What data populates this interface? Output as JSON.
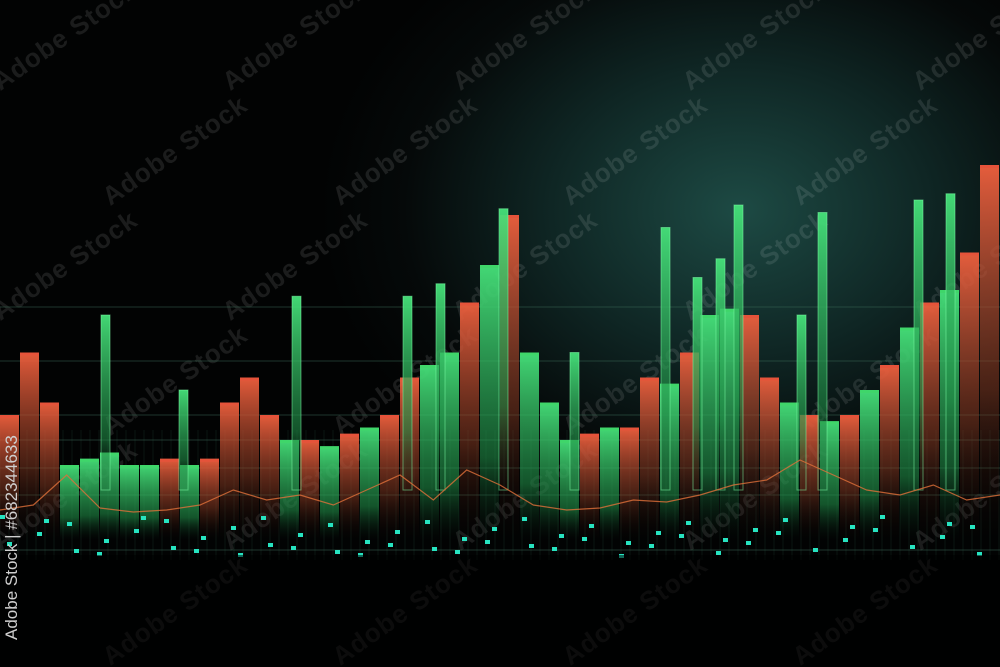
{
  "watermark": "Adobe Stock",
  "stock_id_label": "Adobe Stock | #682344633",
  "colors": {
    "up": "#3fd66a",
    "down": "#e5533a",
    "line": "#e0703a",
    "dots": "#27e3c0",
    "grid": "#3a6a55"
  },
  "chart_data": {
    "type": "bar",
    "title": "",
    "xlabel": "",
    "ylabel": "",
    "ylim": [
      0,
      300
    ],
    "grid": true,
    "bars": [
      {
        "v": 60,
        "c": "down"
      },
      {
        "v": 110,
        "c": "down"
      },
      {
        "v": 70,
        "c": "down"
      },
      {
        "v": 20,
        "c": "up"
      },
      {
        "v": 25,
        "c": "up"
      },
      {
        "v": 30,
        "c": "up"
      },
      {
        "v": 20,
        "c": "up"
      },
      {
        "v": 20,
        "c": "up"
      },
      {
        "v": 25,
        "c": "down"
      },
      {
        "v": 20,
        "c": "up"
      },
      {
        "v": 25,
        "c": "down"
      },
      {
        "v": 70,
        "c": "down"
      },
      {
        "v": 90,
        "c": "down"
      },
      {
        "v": 60,
        "c": "down"
      },
      {
        "v": 40,
        "c": "up"
      },
      {
        "v": 40,
        "c": "down"
      },
      {
        "v": 35,
        "c": "up"
      },
      {
        "v": 45,
        "c": "down"
      },
      {
        "v": 50,
        "c": "up"
      },
      {
        "v": 60,
        "c": "down"
      },
      {
        "v": 90,
        "c": "down"
      },
      {
        "v": 100,
        "c": "up"
      },
      {
        "v": 110,
        "c": "up"
      },
      {
        "v": 150,
        "c": "down"
      },
      {
        "v": 180,
        "c": "up"
      },
      {
        "v": 220,
        "c": "down"
      },
      {
        "v": 110,
        "c": "up"
      },
      {
        "v": 70,
        "c": "up"
      },
      {
        "v": 40,
        "c": "up"
      },
      {
        "v": 45,
        "c": "down"
      },
      {
        "v": 50,
        "c": "up"
      },
      {
        "v": 50,
        "c": "down"
      },
      {
        "v": 90,
        "c": "down"
      },
      {
        "v": 85,
        "c": "up"
      },
      {
        "v": 110,
        "c": "down"
      },
      {
        "v": 140,
        "c": "up"
      },
      {
        "v": 145,
        "c": "up"
      },
      {
        "v": 140,
        "c": "down"
      },
      {
        "v": 90,
        "c": "down"
      },
      {
        "v": 70,
        "c": "up"
      },
      {
        "v": 60,
        "c": "down"
      },
      {
        "v": 55,
        "c": "up"
      },
      {
        "v": 60,
        "c": "down"
      },
      {
        "v": 80,
        "c": "up"
      },
      {
        "v": 100,
        "c": "down"
      },
      {
        "v": 130,
        "c": "up"
      },
      {
        "v": 150,
        "c": "down"
      },
      {
        "v": 160,
        "c": "up"
      },
      {
        "v": 190,
        "c": "down"
      },
      {
        "v": 260,
        "c": "down"
      }
    ],
    "spikes": [
      140,
      80,
      155,
      155,
      165,
      225,
      110,
      210,
      170,
      185,
      228,
      140,
      222,
      232,
      237
    ],
    "line": [
      10,
      15,
      45,
      12,
      8,
      10,
      15,
      30,
      20,
      25,
      15,
      30,
      45,
      20,
      50,
      35,
      15,
      10,
      12,
      20,
      18,
      25,
      35,
      40,
      60,
      45,
      30,
      25,
      35,
      20,
      25
    ]
  }
}
